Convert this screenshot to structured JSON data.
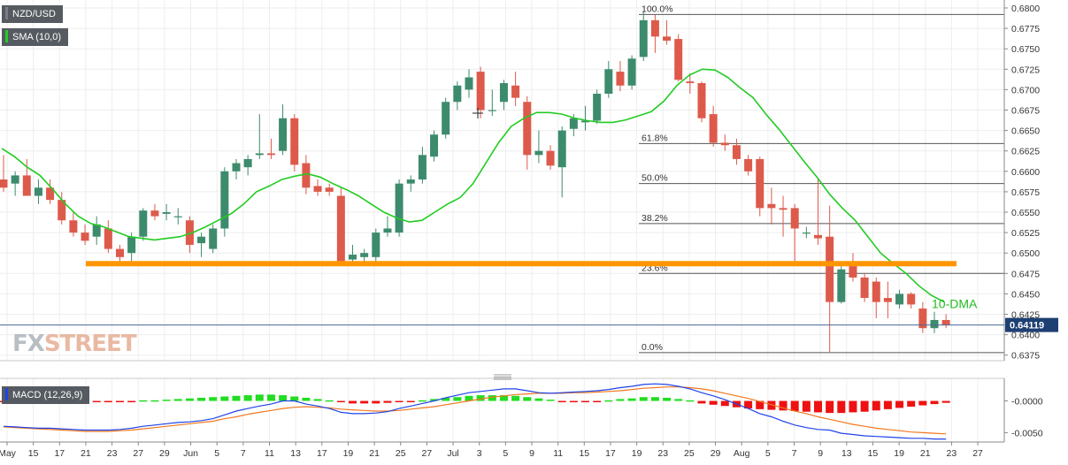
{
  "chart_data": [
    {
      "type": "candlestick",
      "panel": "price",
      "symbol": "NZD/USD",
      "indicator_label": "SMA (10,0)",
      "ylim": [
        0.635,
        0.68
      ],
      "y_ticks": [
        "0.6800",
        "0.6775",
        "0.6750",
        "0.6725",
        "0.6700",
        "0.6675",
        "0.6650",
        "0.6625",
        "0.6600",
        "0.6575",
        "0.6550",
        "0.6525",
        "0.6500",
        "0.6475",
        "0.6450",
        "0.6425",
        "0.6400",
        "0.6375"
      ],
      "last_price": "0.64119",
      "x_ticks": [
        "May",
        "15",
        "17",
        "21",
        "23",
        "27",
        "29",
        "Jun",
        "5",
        "7",
        "11",
        "13",
        "17",
        "19",
        "21",
        "25",
        "27",
        "Jul",
        "3",
        "5",
        "9",
        "11",
        "15",
        "17",
        "19",
        "23",
        "25",
        "29",
        "Aug",
        "5",
        "7",
        "9",
        "13",
        "15",
        "19",
        "21",
        "23",
        "27"
      ],
      "candles": [
        {
          "o": 0.659,
          "h": 0.662,
          "l": 0.6575,
          "c": 0.658
        },
        {
          "o": 0.6585,
          "h": 0.66,
          "l": 0.657,
          "c": 0.6595
        },
        {
          "o": 0.6595,
          "h": 0.6615,
          "l": 0.657,
          "c": 0.657
        },
        {
          "o": 0.657,
          "h": 0.659,
          "l": 0.656,
          "c": 0.658
        },
        {
          "o": 0.658,
          "h": 0.659,
          "l": 0.656,
          "c": 0.6565
        },
        {
          "o": 0.6565,
          "h": 0.6575,
          "l": 0.6535,
          "c": 0.654
        },
        {
          "o": 0.654,
          "h": 0.655,
          "l": 0.652,
          "c": 0.6525
        },
        {
          "o": 0.6525,
          "h": 0.6535,
          "l": 0.651,
          "c": 0.6515
        },
        {
          "o": 0.652,
          "h": 0.6545,
          "l": 0.651,
          "c": 0.6535
        },
        {
          "o": 0.653,
          "h": 0.654,
          "l": 0.65,
          "c": 0.6505
        },
        {
          "o": 0.6505,
          "h": 0.651,
          "l": 0.6487,
          "c": 0.6495
        },
        {
          "o": 0.65,
          "h": 0.6525,
          "l": 0.649,
          "c": 0.652
        },
        {
          "o": 0.652,
          "h": 0.6555,
          "l": 0.6515,
          "c": 0.6552
        },
        {
          "o": 0.6552,
          "h": 0.656,
          "l": 0.654,
          "c": 0.6545
        },
        {
          "o": 0.6548,
          "h": 0.656,
          "l": 0.654,
          "c": 0.655
        },
        {
          "o": 0.6545,
          "h": 0.6555,
          "l": 0.6535,
          "c": 0.6545
        },
        {
          "o": 0.654,
          "h": 0.6545,
          "l": 0.65,
          "c": 0.651
        },
        {
          "o": 0.6512,
          "h": 0.6525,
          "l": 0.6495,
          "c": 0.652
        },
        {
          "o": 0.6505,
          "h": 0.6535,
          "l": 0.65,
          "c": 0.653
        },
        {
          "o": 0.653,
          "h": 0.6605,
          "l": 0.652,
          "c": 0.66
        },
        {
          "o": 0.66,
          "h": 0.6615,
          "l": 0.659,
          "c": 0.661
        },
        {
          "o": 0.6605,
          "h": 0.662,
          "l": 0.6595,
          "c": 0.6615
        },
        {
          "o": 0.662,
          "h": 0.667,
          "l": 0.6615,
          "c": 0.6622
        },
        {
          "o": 0.6622,
          "h": 0.664,
          "l": 0.6615,
          "c": 0.662
        },
        {
          "o": 0.6625,
          "h": 0.6682,
          "l": 0.662,
          "c": 0.6665
        },
        {
          "o": 0.6665,
          "h": 0.667,
          "l": 0.66,
          "c": 0.6608
        },
        {
          "o": 0.661,
          "h": 0.662,
          "l": 0.6572,
          "c": 0.658
        },
        {
          "o": 0.6582,
          "h": 0.659,
          "l": 0.657,
          "c": 0.6575
        },
        {
          "o": 0.658,
          "h": 0.6585,
          "l": 0.657,
          "c": 0.6575
        },
        {
          "o": 0.657,
          "h": 0.658,
          "l": 0.649,
          "c": 0.649
        },
        {
          "o": 0.6492,
          "h": 0.651,
          "l": 0.6488,
          "c": 0.6498
        },
        {
          "o": 0.6495,
          "h": 0.6505,
          "l": 0.6488,
          "c": 0.65
        },
        {
          "o": 0.6495,
          "h": 0.653,
          "l": 0.649,
          "c": 0.6525
        },
        {
          "o": 0.6525,
          "h": 0.6545,
          "l": 0.652,
          "c": 0.653
        },
        {
          "o": 0.6525,
          "h": 0.659,
          "l": 0.652,
          "c": 0.6585
        },
        {
          "o": 0.6585,
          "h": 0.6595,
          "l": 0.6575,
          "c": 0.659
        },
        {
          "o": 0.659,
          "h": 0.663,
          "l": 0.6585,
          "c": 0.662
        },
        {
          "o": 0.6618,
          "h": 0.665,
          "l": 0.6612,
          "c": 0.6645
        },
        {
          "o": 0.6645,
          "h": 0.669,
          "l": 0.664,
          "c": 0.6685
        },
        {
          "o": 0.6685,
          "h": 0.671,
          "l": 0.6675,
          "c": 0.6705
        },
        {
          "o": 0.67,
          "h": 0.6725,
          "l": 0.669,
          "c": 0.6715
        },
        {
          "o": 0.6722,
          "h": 0.6728,
          "l": 0.6665,
          "c": 0.6675
        },
        {
          "o": 0.6675,
          "h": 0.67,
          "l": 0.6668,
          "c": 0.6675
        },
        {
          "o": 0.6685,
          "h": 0.6712,
          "l": 0.6675,
          "c": 0.6708
        },
        {
          "o": 0.6705,
          "h": 0.6722,
          "l": 0.668,
          "c": 0.669
        },
        {
          "o": 0.6685,
          "h": 0.6692,
          "l": 0.6602,
          "c": 0.662
        },
        {
          "o": 0.662,
          "h": 0.665,
          "l": 0.661,
          "c": 0.6625
        },
        {
          "o": 0.6625,
          "h": 0.6632,
          "l": 0.6602,
          "c": 0.6607
        },
        {
          "o": 0.6605,
          "h": 0.6655,
          "l": 0.6568,
          "c": 0.665
        },
        {
          "o": 0.6652,
          "h": 0.667,
          "l": 0.6643,
          "c": 0.6665
        },
        {
          "o": 0.666,
          "h": 0.668,
          "l": 0.665,
          "c": 0.6662
        },
        {
          "o": 0.6662,
          "h": 0.67,
          "l": 0.6658,
          "c": 0.6695
        },
        {
          "o": 0.6695,
          "h": 0.6735,
          "l": 0.669,
          "c": 0.6725
        },
        {
          "o": 0.6722,
          "h": 0.6735,
          "l": 0.6698,
          "c": 0.6705
        },
        {
          "o": 0.6705,
          "h": 0.6742,
          "l": 0.67,
          "c": 0.6738
        },
        {
          "o": 0.674,
          "h": 0.6795,
          "l": 0.6735,
          "c": 0.6785
        },
        {
          "o": 0.6785,
          "h": 0.6792,
          "l": 0.6745,
          "c": 0.6765
        },
        {
          "o": 0.6765,
          "h": 0.6785,
          "l": 0.6755,
          "c": 0.676
        },
        {
          "o": 0.6762,
          "h": 0.6768,
          "l": 0.671,
          "c": 0.6712
        },
        {
          "o": 0.671,
          "h": 0.672,
          "l": 0.6695,
          "c": 0.6708
        },
        {
          "o": 0.6708,
          "h": 0.671,
          "l": 0.666,
          "c": 0.6665
        },
        {
          "o": 0.667,
          "h": 0.668,
          "l": 0.663,
          "c": 0.6635
        },
        {
          "o": 0.6635,
          "h": 0.6645,
          "l": 0.6625,
          "c": 0.6632
        },
        {
          "o": 0.6632,
          "h": 0.664,
          "l": 0.6608,
          "c": 0.6615
        },
        {
          "o": 0.6615,
          "h": 0.662,
          "l": 0.6595,
          "c": 0.66
        },
        {
          "o": 0.6615,
          "h": 0.6618,
          "l": 0.6545,
          "c": 0.6555
        },
        {
          "o": 0.656,
          "h": 0.658,
          "l": 0.6535,
          "c": 0.6555
        },
        {
          "o": 0.6555,
          "h": 0.657,
          "l": 0.652,
          "c": 0.6553
        },
        {
          "o": 0.6555,
          "h": 0.656,
          "l": 0.649,
          "c": 0.653
        },
        {
          "o": 0.6525,
          "h": 0.6532,
          "l": 0.6518,
          "c": 0.6525
        },
        {
          "o": 0.6522,
          "h": 0.659,
          "l": 0.651,
          "c": 0.6518
        },
        {
          "o": 0.652,
          "h": 0.6558,
          "l": 0.6378,
          "c": 0.644
        },
        {
          "o": 0.644,
          "h": 0.649,
          "l": 0.6438,
          "c": 0.648
        },
        {
          "o": 0.6485,
          "h": 0.65,
          "l": 0.6465,
          "c": 0.647
        },
        {
          "o": 0.647,
          "h": 0.6475,
          "l": 0.644,
          "c": 0.6445
        },
        {
          "o": 0.6465,
          "h": 0.647,
          "l": 0.642,
          "c": 0.644
        },
        {
          "o": 0.6445,
          "h": 0.6465,
          "l": 0.642,
          "c": 0.644
        },
        {
          "o": 0.6437,
          "h": 0.6455,
          "l": 0.6432,
          "c": 0.645
        },
        {
          "o": 0.645,
          "h": 0.6452,
          "l": 0.6432,
          "c": 0.6437
        },
        {
          "o": 0.6432,
          "h": 0.644,
          "l": 0.6402,
          "c": 0.6408
        },
        {
          "o": 0.6408,
          "h": 0.6428,
          "l": 0.6402,
          "c": 0.6418
        },
        {
          "o": 0.6418,
          "h": 0.6425,
          "l": 0.6408,
          "c": 0.6412
        }
      ],
      "sma_label": "10-DMA",
      "sma": [
        0.6628,
        0.6618,
        0.6605,
        0.6595,
        0.6578,
        0.656,
        0.6545,
        0.6536,
        0.6532,
        0.6526,
        0.652,
        0.6518,
        0.6516,
        0.6518,
        0.652,
        0.6525,
        0.6532,
        0.654,
        0.6548,
        0.656,
        0.6575,
        0.6582,
        0.659,
        0.6594,
        0.6597,
        0.6593,
        0.6585,
        0.6578,
        0.657,
        0.656,
        0.655,
        0.6543,
        0.6538,
        0.654,
        0.655,
        0.656,
        0.6568,
        0.6585,
        0.661,
        0.6635,
        0.6655,
        0.6665,
        0.6672,
        0.6672,
        0.667,
        0.6665,
        0.6662,
        0.666,
        0.666,
        0.6663,
        0.6668,
        0.6673,
        0.6686,
        0.6705,
        0.6718,
        0.6725,
        0.6724,
        0.6715,
        0.6702,
        0.669,
        0.667,
        0.6652,
        0.6632,
        0.6612,
        0.6593,
        0.6572,
        0.6555,
        0.654,
        0.652,
        0.65,
        0.6487,
        0.6475,
        0.646,
        0.6448,
        0.644
      ],
      "fibonacci": [
        {
          "label": "100.0%",
          "value": 0.6792
        },
        {
          "label": "61.8%",
          "value": 0.6634
        },
        {
          "label": "50.0%",
          "value": 0.6585
        },
        {
          "label": "38.2%",
          "value": 0.6536
        },
        {
          "label": "23.6%",
          "value": 0.6475
        },
        {
          "label": "0.0%",
          "value": 0.6378
        }
      ],
      "support_level": 0.6487
    },
    {
      "type": "macd",
      "panel": "indicator",
      "label": "MACD (12,26,9)",
      "ylim": [
        -0.0062,
        0.003
      ],
      "y_ticks": [
        {
          "label": "-0.0000",
          "value": 0.0
        },
        {
          "label": "-0.0050",
          "value": -0.005
        }
      ],
      "histogram": [
        -0.0002,
        -0.0002,
        -0.0002,
        -0.0003,
        -0.0003,
        -0.0003,
        -0.0003,
        -0.0003,
        -0.0002,
        -0.0002,
        -0.0001,
        -0.0001,
        0.0001,
        0.0001,
        0.0002,
        0.0003,
        0.0004,
        0.0005,
        0.0006,
        0.0007,
        0.0008,
        0.0009,
        0.001,
        0.001,
        0.0009,
        0.0007,
        0.0005,
        0.0003,
        0.0001,
        -0.0002,
        -0.0004,
        -0.0004,
        -0.0004,
        -0.0003,
        -0.0002,
        -0.0001,
        0.0001,
        0.0003,
        0.0005,
        0.0006,
        0.0008,
        0.0009,
        0.0009,
        0.0009,
        0.0008,
        0.0006,
        0.0004,
        0.0002,
        -0.0001,
        -0.0002,
        -0.0002,
        -0.0001,
        0.0001,
        0.0003,
        0.0004,
        0.0006,
        0.0006,
        0.0005,
        0.0003,
        0.0001,
        -0.0004,
        -0.0006,
        -0.0008,
        -0.001,
        -0.0012,
        -0.0013,
        -0.0014,
        -0.0015,
        -0.0016,
        -0.0017,
        -0.0018,
        -0.0019,
        -0.0019,
        -0.0018,
        -0.0017,
        -0.0015,
        -0.0013,
        -0.0011,
        -0.0009,
        -0.0007,
        -0.0005,
        -0.0003
      ],
      "macd_line": [
        -0.004,
        -0.0041,
        -0.0042,
        -0.0043,
        -0.0043,
        -0.0044,
        -0.0045,
        -0.0046,
        -0.0046,
        -0.0046,
        -0.0045,
        -0.0043,
        -0.004,
        -0.0038,
        -0.0036,
        -0.0034,
        -0.0033,
        -0.0031,
        -0.0028,
        -0.0022,
        -0.0016,
        -0.0012,
        -0.0008,
        -0.0005,
        0.0,
        0.0,
        -0.0005,
        -0.0008,
        -0.0012,
        -0.0018,
        -0.002,
        -0.002,
        -0.0019,
        -0.0017,
        -0.0012,
        -0.0008,
        -0.0004,
        0.0,
        0.0005,
        0.0009,
        0.0013,
        0.0015,
        0.0017,
        0.0019,
        0.0019,
        0.0016,
        0.0013,
        0.0012,
        0.0013,
        0.0014,
        0.0015,
        0.0016,
        0.0018,
        0.0021,
        0.0023,
        0.0026,
        0.0027,
        0.0026,
        0.0023,
        0.0019,
        0.0013,
        0.0008,
        0.0002,
        -0.0005,
        -0.0012,
        -0.002,
        -0.0025,
        -0.0032,
        -0.0038,
        -0.0042,
        -0.0045,
        -0.0046,
        -0.0051,
        -0.0053,
        -0.0055,
        -0.0056,
        -0.0057,
        -0.0058,
        -0.0059,
        -0.0059,
        -0.006,
        -0.006
      ],
      "signal_line": [
        -0.0041,
        -0.0042,
        -0.0043,
        -0.0044,
        -0.0045,
        -0.0046,
        -0.0047,
        -0.0048,
        -0.0048,
        -0.0048,
        -0.0047,
        -0.0046,
        -0.0044,
        -0.0042,
        -0.004,
        -0.0038,
        -0.0036,
        -0.0034,
        -0.0032,
        -0.0028,
        -0.0025,
        -0.0021,
        -0.0018,
        -0.0015,
        -0.0012,
        -0.001,
        -0.0009,
        -0.001,
        -0.0011,
        -0.0013,
        -0.0014,
        -0.0015,
        -0.0016,
        -0.0016,
        -0.0015,
        -0.0013,
        -0.0011,
        -0.0009,
        -0.0006,
        -0.0003,
        0.0,
        0.0003,
        0.0006,
        0.0008,
        0.001,
        0.0011,
        0.0012,
        0.0012,
        0.0012,
        0.0013,
        0.0013,
        0.0014,
        0.0015,
        0.0016,
        0.0018,
        0.002,
        0.0021,
        0.0022,
        0.0022,
        0.0021,
        0.0019,
        0.0016,
        0.0012,
        0.0008,
        0.0004,
        -0.0001,
        -0.0006,
        -0.0011,
        -0.0016,
        -0.002,
        -0.0025,
        -0.0029,
        -0.0033,
        -0.0037,
        -0.004,
        -0.0043,
        -0.0045,
        -0.0047,
        -0.0049,
        -0.005,
        -0.0051,
        -0.0052
      ]
    }
  ],
  "overlay": {
    "symbol_tag": "NZD/USD",
    "sma_tag": "SMA (10,0)",
    "macd_tag": "MACD (12,26,9)",
    "logo_fx": "FX",
    "logo_street": "STREET"
  },
  "colors": {
    "bull": "#3d8b6d",
    "bear": "#dd5a4b",
    "sma": "#22cc22",
    "support": "#ff9500",
    "macd_line": "#1f43e8",
    "signal_line": "#f07820",
    "hist_pos": "#22dd22",
    "hist_neg": "#ee1111"
  }
}
